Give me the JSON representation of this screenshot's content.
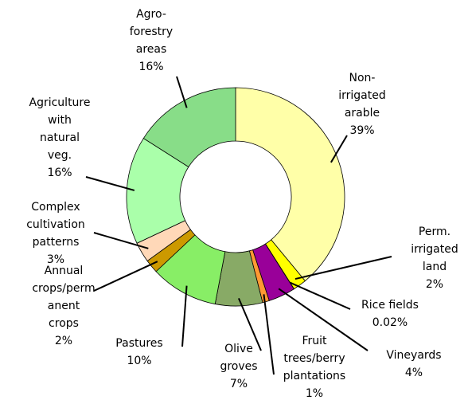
{
  "chart_data": {
    "type": "pie",
    "donut": true,
    "categories": [
      "Non-\nirrigated\narable",
      "Perm.\nirrigated\nland",
      "Rice fields",
      "Vineyards",
      "Fruit\ntrees/berry\nplantations",
      "Olive\ngroves",
      "Pastures",
      "Annual\ncrops/perm\nanent\ncrops",
      "Complex\ncultivation\npatterns",
      "Agriculture\nwith\nnatural\nveg.",
      "Agro-\nforestry\nareas"
    ],
    "values": [
      39,
      2,
      0.02,
      4,
      1,
      7,
      10,
      2,
      3,
      16,
      16
    ],
    "value_labels": [
      "39%",
      "2%",
      "0.02%",
      "4%",
      "1%",
      "7%",
      "10%",
      "2%",
      "3%",
      "16%",
      "16%"
    ],
    "colors": [
      "#ffffa8",
      "#ffff00",
      "#ff0000",
      "#990099",
      "#ff9933",
      "#88aa66",
      "#88ee66",
      "#cc9900",
      "#ffd8b8",
      "#aaffaa",
      "#88dd88"
    ]
  }
}
